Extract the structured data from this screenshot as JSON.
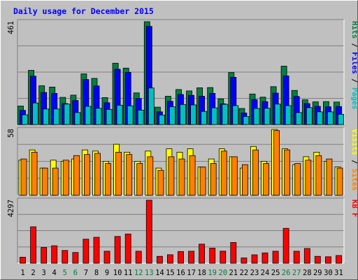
{
  "chart_data": {
    "type": "bar",
    "title": "Daily usage for December 2015",
    "title_color": "#0000ff",
    "background": "#c0c0c0",
    "categories": [
      "1",
      "2",
      "3",
      "4",
      "5",
      "6",
      "7",
      "8",
      "9",
      "10",
      "11",
      "12",
      "13",
      "14",
      "15",
      "16",
      "17",
      "18",
      "19",
      "20",
      "21",
      "22",
      "23",
      "24",
      "25",
      "26",
      "27",
      "28",
      "29",
      "30",
      "31"
    ],
    "weekend_days": [
      "5",
      "6",
      "12",
      "13",
      "19",
      "20",
      "26",
      "27"
    ],
    "weekday_label_color": "#000000",
    "weekend_label_color": "#008040",
    "panels": [
      {
        "id": "hits-files-pages",
        "ymax_label": "461",
        "ymax": 461,
        "side_legend": [
          {
            "text": "Pages",
            "color": "#00c0c0"
          },
          {
            "text": " / ",
            "color": "#000000"
          },
          {
            "text": "Files",
            "color": "#0000ff"
          },
          {
            "text": " / ",
            "color": "#000000"
          },
          {
            "text": "Hits",
            "color": "#008040"
          }
        ],
        "series": [
          {
            "name": "Hits",
            "color": "#008040",
            "values": [
              83,
              243,
              174,
              168,
              122,
              132,
              227,
              207,
              121,
              275,
              253,
              142,
              461,
              78,
              127,
              157,
              151,
              165,
              166,
              115,
              233,
              72,
              137,
              123,
              170,
              262,
              153,
              111,
              102,
              103,
              101
            ]
          },
          {
            "name": "Files",
            "color": "#0000ff",
            "values": [
              64,
              217,
              144,
              140,
              94,
              108,
              202,
              173,
              98,
              248,
              234,
              117,
              440,
              57,
              104,
              135,
              131,
              127,
              140,
              93,
              212,
              52,
              112,
              103,
              141,
              218,
              126,
              94,
              82,
              80,
              81
            ]
          },
          {
            "name": "Pages",
            "color": "#00c0c0",
            "values": [
              44,
              97,
              70,
              70,
              92,
              54,
              82,
              73,
              68,
              87,
              84,
              65,
              164,
              43,
              80,
              90,
              88,
              59,
              75,
              91,
              85,
              36,
              72,
              73,
              92,
              85,
              54,
              76,
              57,
              57,
              46
            ]
          }
        ]
      },
      {
        "id": "visits-sites",
        "ymax_label": "58",
        "ymax": 58,
        "side_legend": [
          {
            "text": "Sites",
            "color": "#ff8000"
          },
          {
            "text": " / ",
            "color": "#000000"
          },
          {
            "text": "Visits",
            "color": "#ffff00"
          }
        ],
        "series": [
          {
            "name": "Visits",
            "color": "#ffff00",
            "values": [
              31,
              40,
              24,
              31,
              30,
              32,
              40,
              39,
              30,
              45,
              38,
              30,
              39,
              24,
              41,
              38,
              41,
              25,
              32,
              41,
              34,
              24,
              43,
              30,
              58,
              41,
              27,
              34,
              38,
              30,
              25
            ]
          },
          {
            "name": "Sites",
            "color": "#ff8000",
            "values": [
              32,
              38,
              24,
              24,
              31,
              35,
              36,
              37,
              28,
              38,
              36,
              28,
              34,
              22,
              34,
              32,
              35,
              25,
              28,
              39,
              34,
              27,
              40,
              28,
              57,
              40,
              28,
              31,
              35,
              32,
              24
            ]
          }
        ]
      },
      {
        "id": "kbytes",
        "ymax_label": "4297",
        "ymax": 4297,
        "side_legend": [
          {
            "text": "KB F",
            "color": "#ff0000"
          }
        ],
        "series": [
          {
            "name": "KB F",
            "color": "#ff0000",
            "values": [
              411,
              2483,
              1072,
              1190,
              869,
              731,
              1638,
              1766,
              816,
              1823,
              1990,
              818,
              4297,
              467,
              576,
              799,
              816,
              1300,
              1025,
              821,
              1413,
              362,
              574,
              704,
              817,
              2378,
              816,
              1003,
              466,
              441,
              527
            ]
          }
        ]
      }
    ],
    "grid": true,
    "legend_position": "right-vertical"
  }
}
